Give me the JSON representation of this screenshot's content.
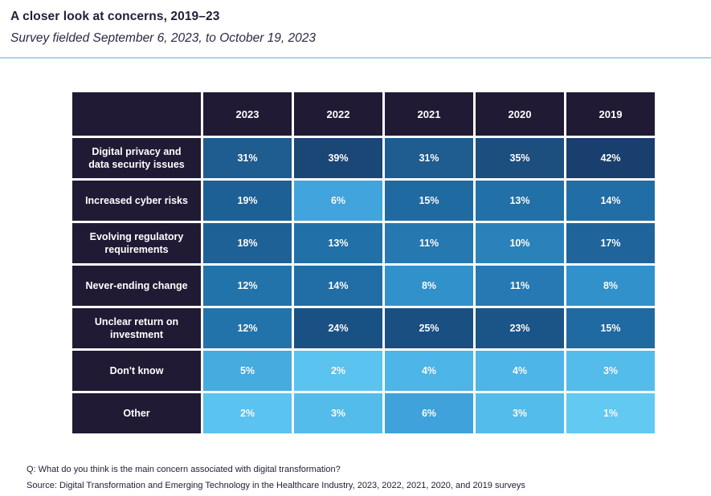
{
  "header": {
    "title": "A closer look at concerns, 2019–23",
    "subtitle": "Survey fielded September 6, 2023, to October 19, 2023"
  },
  "chart_data": {
    "type": "heatmap",
    "title": "A closer look at concerns, 2019–23",
    "columns": [
      "2023",
      "2022",
      "2021",
      "2020",
      "2019"
    ],
    "value_format": "percent",
    "rows": [
      {
        "label": "Digital privacy and data security issues",
        "values": [
          31,
          39,
          31,
          35,
          42
        ],
        "colors": [
          "#1f5c8f",
          "#1a4775",
          "#1f5c8f",
          "#1c4e7e",
          "#183f6d"
        ]
      },
      {
        "label": "Increased cyber risks",
        "values": [
          19,
          6,
          15,
          13,
          14
        ],
        "colors": [
          "#1d6095",
          "#41a4dc",
          "#206aa2",
          "#2270a8",
          "#216da5"
        ]
      },
      {
        "label": "Evolving regulatory requirements",
        "values": [
          18,
          13,
          11,
          10,
          17
        ],
        "colors": [
          "#1d6196",
          "#2170a8",
          "#2678b1",
          "#2b82bb",
          "#1f659b"
        ]
      },
      {
        "label": "Never-ending change",
        "values": [
          12,
          14,
          8,
          11,
          8
        ],
        "colors": [
          "#2373ab",
          "#216da5",
          "#3191ca",
          "#2679b2",
          "#3191ca"
        ]
      },
      {
        "label": "Unclear return on investment",
        "values": [
          12,
          24,
          25,
          23,
          15
        ],
        "colors": [
          "#2373ab",
          "#1a5184",
          "#1a4f82",
          "#1b5487",
          "#206aa2"
        ]
      },
      {
        "label": "Don't know",
        "values": [
          5,
          2,
          4,
          4,
          3
        ],
        "colors": [
          "#46acdf",
          "#5bc3ef",
          "#4db5e7",
          "#4db5e7",
          "#54bceb"
        ]
      },
      {
        "label": "Other",
        "values": [
          2,
          3,
          6,
          3,
          1
        ],
        "colors": [
          "#5bc3ef",
          "#54bceb",
          "#40a2da",
          "#54bceb",
          "#62c9f3"
        ]
      }
    ],
    "legend_position": "none",
    "header_bg": "#201a34",
    "cell_text_color": "#ffffff",
    "scale": {
      "low_value": 1,
      "low_color": "#62c9f3",
      "high_value": 42,
      "high_color": "#183f6d"
    }
  },
  "footer": {
    "question": "Q: What do you think is the main concern associated with digital transformation?",
    "source": "Source: Digital Transformation and Emerging Technology in the Healthcare Industry, 2023, 2022, 2021, 2020, and 2019 surveys"
  }
}
